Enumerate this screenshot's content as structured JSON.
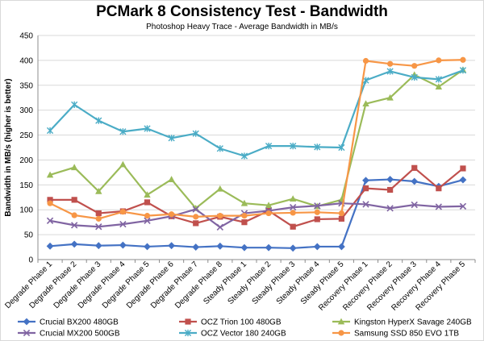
{
  "chart_data": {
    "type": "line",
    "title": "PCMark 8 Consistency Test - Bandwidth",
    "subtitle": "Photoshop Heavy Trace - Average Bandwidth in MB/s",
    "xlabel": "",
    "ylabel": "Bandwidth in MB/s (higher is better)",
    "ylim": [
      0,
      450
    ],
    "yticks": [
      0,
      50,
      100,
      150,
      200,
      250,
      300,
      350,
      400,
      450
    ],
    "grid": true,
    "legend_position": "bottom",
    "categories": [
      "Degrade Phase 1",
      "Degrade Phase 2",
      "Degrade Phase 3",
      "Degrade Phase 4",
      "Degrade Phase 5",
      "Degrade Phase 6",
      "Degrade Phase 7",
      "Degrade Phase 8",
      "Steady Phase 1",
      "Steady Phase 2",
      "Steady Phase 3",
      "Steady Phase 4",
      "Steady Phase 5",
      "Recovery Phase 1",
      "Recovery Phase 2",
      "Recovery Phase 3",
      "Recovery Phase 4",
      "Recovery Phase 5"
    ],
    "series": [
      {
        "name": "Crucial BX200 480GB",
        "color": "#4472c4",
        "marker": "diamond",
        "values": [
          27,
          31,
          28,
          29,
          26,
          28,
          25,
          27,
          24,
          24,
          23,
          26,
          26,
          159,
          161,
          157,
          147,
          160
        ]
      },
      {
        "name": "OCZ Trion 100 480GB",
        "color": "#c0504d",
        "marker": "square",
        "values": [
          120,
          120,
          93,
          97,
          115,
          87,
          73,
          86,
          75,
          98,
          66,
          81,
          82,
          143,
          140,
          184,
          143,
          183
        ]
      },
      {
        "name": "Kingston HyperX Savage 240GB",
        "color": "#9bbb59",
        "marker": "triangle",
        "values": [
          170,
          185,
          137,
          191,
          130,
          161,
          103,
          142,
          113,
          109,
          122,
          107,
          120,
          313,
          325,
          371,
          347,
          381
        ]
      },
      {
        "name": "Crucial MX200 500GB",
        "color": "#8064a2",
        "marker": "x",
        "values": [
          78,
          69,
          66,
          71,
          78,
          87,
          101,
          65,
          93,
          98,
          105,
          108,
          113,
          111,
          103,
          110,
          106,
          107
        ]
      },
      {
        "name": "OCZ Vector 180 240GB",
        "color": "#4bacc6",
        "marker": "star",
        "values": [
          259,
          311,
          279,
          257,
          263,
          244,
          253,
          223,
          208,
          228,
          228,
          226,
          225,
          360,
          378,
          366,
          362,
          380
        ]
      },
      {
        "name": "Samsung SSD 850 EVO 1TB",
        "color": "#f79646",
        "marker": "circle",
        "values": [
          113,
          89,
          82,
          96,
          88,
          91,
          86,
          88,
          88,
          93,
          94,
          95,
          93,
          399,
          393,
          389,
          400,
          401
        ]
      }
    ]
  }
}
